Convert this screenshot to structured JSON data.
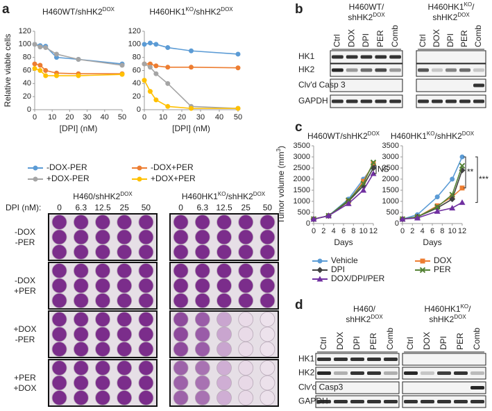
{
  "panels": [
    "a",
    "b",
    "c",
    "d"
  ],
  "chart_data": [
    {
      "type": "line",
      "title": [
        "H460WT/shHK2",
        "DOX"
      ],
      "x_label": "[DPI] (nM)",
      "y_label": "Relative viable cells",
      "x": [
        0,
        3.125,
        6.25,
        12.5,
        25,
        50
      ],
      "xlim": [
        0,
        50
      ],
      "xticks": [
        0,
        10,
        20,
        30,
        40,
        50
      ],
      "ylim": [
        0,
        120
      ],
      "yticks": [
        0,
        20,
        40,
        60,
        80,
        100,
        120
      ],
      "series": [
        {
          "name": "-DOX-PER",
          "color": "#5b9bd5",
          "marker": "circle",
          "values": [
            100,
            98,
            97,
            80,
            77,
            70
          ]
        },
        {
          "name": "-DOX+PER",
          "color": "#ed7d31",
          "marker": "circle",
          "values": [
            70,
            68,
            60,
            56,
            55,
            55
          ]
        },
        {
          "name": "+DOX-PER",
          "color": "#a5a5a5",
          "marker": "circle",
          "values": [
            100,
            96,
            95,
            85,
            77,
            68
          ]
        },
        {
          "name": "+DOX+PER",
          "color": "#ffc000",
          "marker": "circle",
          "values": [
            63,
            60,
            52,
            52,
            52,
            54
          ]
        }
      ]
    },
    {
      "type": "line",
      "title": [
        "H460HK1",
        "KO",
        "/shHK2",
        "DOX"
      ],
      "x_label": "[DPI] (nM)",
      "x": [
        0,
        3.125,
        6.25,
        12.5,
        25,
        50
      ],
      "xlim": [
        0,
        50
      ],
      "xticks": [
        0,
        10,
        20,
        30,
        40,
        50
      ],
      "ylim": [
        0,
        120
      ],
      "yticks": [
        0,
        20,
        40,
        60,
        80,
        100,
        120
      ],
      "series": [
        {
          "color": "#5b9bd5",
          "marker": "circle",
          "values": [
            100,
            102,
            100,
            95,
            90,
            85
          ]
        },
        {
          "color": "#ed7d31",
          "marker": "circle",
          "values": [
            70,
            70,
            67,
            65,
            65,
            64
          ]
        },
        {
          "color": "#a5a5a5",
          "marker": "circle",
          "values": [
            70,
            65,
            55,
            40,
            5,
            2
          ]
        },
        {
          "color": "#ffc000",
          "marker": "circle",
          "values": [
            45,
            28,
            15,
            5,
            2,
            2
          ]
        }
      ]
    },
    {
      "type": "line",
      "title": [
        "H460WT/shHK2",
        "DOX"
      ],
      "x_label": "Days",
      "y_label": [
        "Tumor volume (mm",
        "3",
        ")"
      ],
      "x": [
        0,
        3,
        7,
        10,
        12
      ],
      "xlim": [
        0,
        12
      ],
      "xticks": [
        0,
        2,
        4,
        6,
        8,
        10,
        12
      ],
      "ylim": [
        0,
        3500
      ],
      "yticks": [
        0,
        500,
        1000,
        1500,
        2000,
        2500,
        3000,
        3500
      ],
      "annotations": [
        "NS"
      ],
      "series": [
        {
          "name": "Vehicle",
          "color": "#5b9bd5",
          "marker": "circle",
          "values": [
            200,
            350,
            1100,
            2000,
            2600
          ]
        },
        {
          "name": "DOX",
          "color": "#ed7d31",
          "marker": "square",
          "values": [
            200,
            350,
            1000,
            1900,
            2700
          ]
        },
        {
          "name": "DPI",
          "color": "#404040",
          "marker": "diamond",
          "values": [
            200,
            350,
            1000,
            1700,
            2500
          ]
        },
        {
          "name": "PER",
          "color": "#548235",
          "marker": "x",
          "values": [
            200,
            350,
            1050,
            1800,
            2750
          ]
        },
        {
          "name": "DOX/DPI/PER",
          "color": "#7030a0",
          "marker": "triangle",
          "values": [
            200,
            350,
            900,
            1500,
            2250
          ]
        }
      ]
    },
    {
      "type": "line",
      "title": [
        "H460HK1",
        "KO",
        "/shHK2",
        "DOX"
      ],
      "x_label": "Days",
      "x": [
        0,
        3,
        7,
        10,
        12
      ],
      "xlim": [
        0,
        12
      ],
      "xticks": [
        0,
        2,
        4,
        6,
        8,
        10,
        12
      ],
      "ylim": [
        0,
        3500
      ],
      "yticks": [
        0,
        500,
        1000,
        1500,
        2000,
        2500,
        3000,
        3500
      ],
      "annotations": [
        "**",
        "***"
      ],
      "series": [
        {
          "color": "#5b9bd5",
          "marker": "circle",
          "values": [
            200,
            400,
            1200,
            2000,
            3000
          ]
        },
        {
          "color": "#ed7d31",
          "marker": "square",
          "values": [
            200,
            300,
            800,
            1200,
            1600
          ]
        },
        {
          "color": "#404040",
          "marker": "diamond",
          "values": [
            200,
            300,
            700,
            1100,
            2400
          ]
        },
        {
          "color": "#548235",
          "marker": "x",
          "values": [
            200,
            300,
            750,
            1300,
            2600
          ]
        },
        {
          "color": "#7030a0",
          "marker": "triangle",
          "values": [
            200,
            250,
            550,
            700,
            950
          ]
        }
      ]
    }
  ],
  "plates": {
    "titles": [
      [
        "H460/shHK2",
        "DOX"
      ],
      [
        "H460HK1",
        "KO",
        "/shHK2",
        "DOX"
      ]
    ],
    "dpi_label": "DPI (nM):",
    "doses": [
      "0",
      "6.3",
      "12.5",
      "25",
      "50"
    ],
    "conditions": [
      [
        "-DOX",
        "-PER"
      ],
      [
        "-DOX",
        "+PER"
      ],
      [
        "+DOX",
        "-PER"
      ],
      [
        "+PER",
        "+DOX"
      ]
    ]
  },
  "blot_b": {
    "groups": [
      [
        [
          "H460WT/"
        ],
        [
          "shHK2",
          "DOX"
        ]
      ],
      [
        [
          "H460HK1",
          "KO",
          "/"
        ],
        [
          "shHK2",
          "DOX"
        ]
      ]
    ],
    "lanes": [
      "Ctrl",
      "DOX",
      "DPI",
      "PER",
      "Comb"
    ],
    "rows": [
      "HK1",
      "HK2",
      "Clv'd Casp 3",
      "GAPDH"
    ]
  },
  "blot_d": {
    "groups": [
      [
        [
          "H460/"
        ],
        [
          "shHK2",
          "DOX"
        ]
      ],
      [
        [
          "H460HK1",
          "KO",
          "/"
        ],
        [
          "shHK2",
          "DOX"
        ]
      ]
    ],
    "lanes": [
      "Ctrl",
      "DOX",
      "DPI",
      "PER",
      "Comb"
    ],
    "rows": [
      "HK1",
      "HK2",
      "Clv'd Casp3",
      "GAPDH"
    ]
  }
}
